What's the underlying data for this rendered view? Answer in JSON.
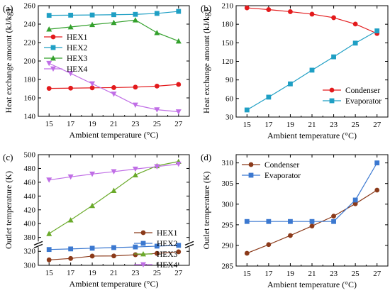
{
  "chart_data": [
    {
      "type": "line",
      "panel_label": "(a)",
      "xlabel": "Ambient temperature (°C)",
      "ylabel": "Heat exchange amount (kJ/kg)",
      "x": [
        15,
        17,
        19,
        21,
        23,
        25,
        27
      ],
      "xlim": [
        14,
        28
      ],
      "ylim": [
        140,
        260
      ],
      "yticks": [
        140,
        160,
        180,
        200,
        220,
        240,
        260
      ],
      "legend": "center-left",
      "grid": false,
      "series": [
        {
          "name": "HEX1",
          "color": "#e31a1c",
          "marker": "circle",
          "values": [
            170.3,
            170.6,
            170.9,
            171.2,
            171.7,
            172.8,
            174.6
          ]
        },
        {
          "name": "HEX2",
          "color": "#1f9fc4",
          "marker": "square",
          "values": [
            249.5,
            249.7,
            249.9,
            250.2,
            250.6,
            251.6,
            253.8
          ]
        },
        {
          "name": "HEX3",
          "color": "#33a02c",
          "marker": "triangle-up",
          "values": [
            234.5,
            236.9,
            239.4,
            241.7,
            244.4,
            230.7,
            221.6
          ]
        },
        {
          "name": "HEX4",
          "color": "#c06ee6",
          "marker": "triangle-down",
          "values": [
            197.5,
            186.6,
            175.4,
            164.2,
            152.3,
            147.2,
            145.0
          ]
        }
      ]
    },
    {
      "type": "line",
      "panel_label": "(b)",
      "xlabel": "Ambient temperature (°C)",
      "ylabel": "Heat exchange amount (kJ/kg)",
      "x": [
        15,
        17,
        19,
        21,
        23,
        25,
        27
      ],
      "xlim": [
        14,
        28
      ],
      "ylim": [
        30,
        210
      ],
      "yticks": [
        30,
        60,
        90,
        120,
        150,
        180,
        210
      ],
      "legend": "bottom-right",
      "grid": false,
      "series": [
        {
          "name": "Condenser",
          "color": "#e31a1c",
          "marker": "circle",
          "values": [
            206.5,
            203.6,
            200.3,
            196.3,
            190.6,
            180.3,
            165.0
          ]
        },
        {
          "name": "Evaporator",
          "color": "#1f9fc4",
          "marker": "square",
          "values": [
            41.5,
            62.2,
            83.6,
            105.8,
            127.3,
            149.5,
            169.3
          ]
        }
      ]
    },
    {
      "type": "line",
      "panel_label": "(c)",
      "xlabel": "Ambient temperature (°C)",
      "ylabel": "Outlet temperature (K)",
      "x": [
        15,
        17,
        19,
        21,
        23,
        25,
        27
      ],
      "xlim": [
        14,
        28
      ],
      "y_axis_break": {
        "lower_range": [
          300,
          330
        ],
        "upper_range": [
          370,
          500
        ]
      },
      "yticks_lower": [
        300,
        320
      ],
      "yticks_upper": [
        380,
        400,
        420,
        440,
        460,
        480,
        500
      ],
      "legend": "center-right",
      "grid": false,
      "series": [
        {
          "name": "HEX1",
          "color": "#8b3a1a",
          "marker": "circle",
          "values": [
            307.8,
            309.8,
            313.2,
            313.4,
            315.1,
            317.0,
            319.3
          ]
        },
        {
          "name": "HEX2",
          "color": "#3b78d0",
          "marker": "square",
          "values": [
            322.6,
            323.4,
            324.4,
            325.3,
            326.2,
            327.4,
            328.5
          ]
        },
        {
          "name": "HEX3",
          "color": "#6aaa2a",
          "marker": "triangle-up",
          "values": [
            385.5,
            405.2,
            426.1,
            448.0,
            470.6,
            483.8,
            490.1
          ]
        },
        {
          "name": "HEX4",
          "color": "#c06ee6",
          "marker": "triangle-down",
          "values": [
            463.3,
            467.8,
            471.9,
            475.4,
            479.2,
            482.7,
            486.4
          ]
        }
      ]
    },
    {
      "type": "line",
      "panel_label": "(d)",
      "xlabel": "Ambient temperature (°C)",
      "ylabel": "Outlet temperature (K)",
      "x": [
        15,
        17,
        19,
        21,
        23,
        25,
        27
      ],
      "xlim": [
        14,
        28
      ],
      "ylim": [
        285,
        312
      ],
      "yticks": [
        285,
        290,
        295,
        300,
        305,
        310
      ],
      "legend": "top-left",
      "grid": false,
      "series": [
        {
          "name": "Condenser",
          "color": "#8b3a1a",
          "marker": "circle",
          "values": [
            288.1,
            290.2,
            292.4,
            294.7,
            297.1,
            300.1,
            303.4
          ]
        },
        {
          "name": "Evaporator",
          "color": "#3b78d0",
          "marker": "square",
          "values": [
            295.8,
            295.8,
            295.8,
            295.8,
            295.8,
            301.0,
            310.0
          ]
        }
      ]
    }
  ]
}
